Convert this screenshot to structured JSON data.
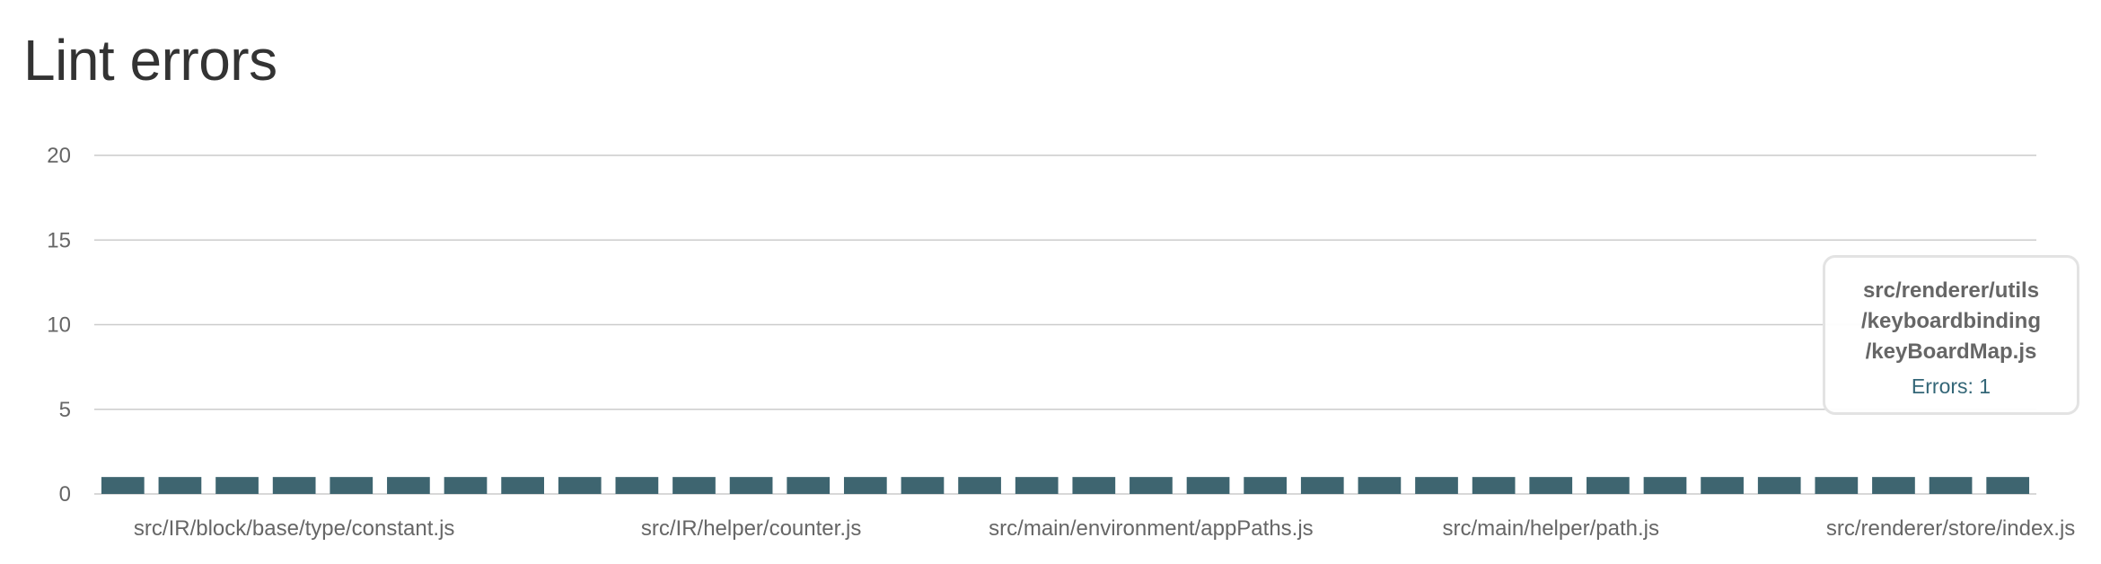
{
  "page": {
    "title": "Lint errors"
  },
  "colors": {
    "bar": "#3e6570",
    "grid": "#cccccc",
    "tooltip_value": "#336677"
  },
  "chart_data": {
    "type": "bar",
    "title": "",
    "xlabel": "",
    "ylabel": "",
    "ylim": [
      0,
      20
    ],
    "y_ticks": [
      0,
      5,
      10,
      15,
      20
    ],
    "grid": true,
    "bar_count": 34,
    "values": [
      1,
      1,
      1,
      1,
      1,
      1,
      1,
      1,
      1,
      1,
      1,
      1,
      1,
      1,
      1,
      1,
      1,
      1,
      1,
      1,
      1,
      1,
      1,
      1,
      1,
      1,
      1,
      1,
      1,
      1,
      1,
      1,
      1,
      1
    ],
    "x_tick_labels": [
      {
        "index": 3,
        "label": "src/IR/block/base/type/constant.js"
      },
      {
        "index": 11,
        "label": "src/IR/helper/counter.js"
      },
      {
        "index": 18,
        "label": "src/main/environment/appPaths.js"
      },
      {
        "index": 25,
        "label": "src/main/helper/path.js"
      },
      {
        "index": 32,
        "label": "src/renderer/store/index.js"
      }
    ],
    "tooltip": {
      "title_lines": [
        "src/renderer/utils",
        "/keyboardbinding",
        "/keyBoardMap.js"
      ],
      "value_text": "Errors: 1"
    }
  }
}
